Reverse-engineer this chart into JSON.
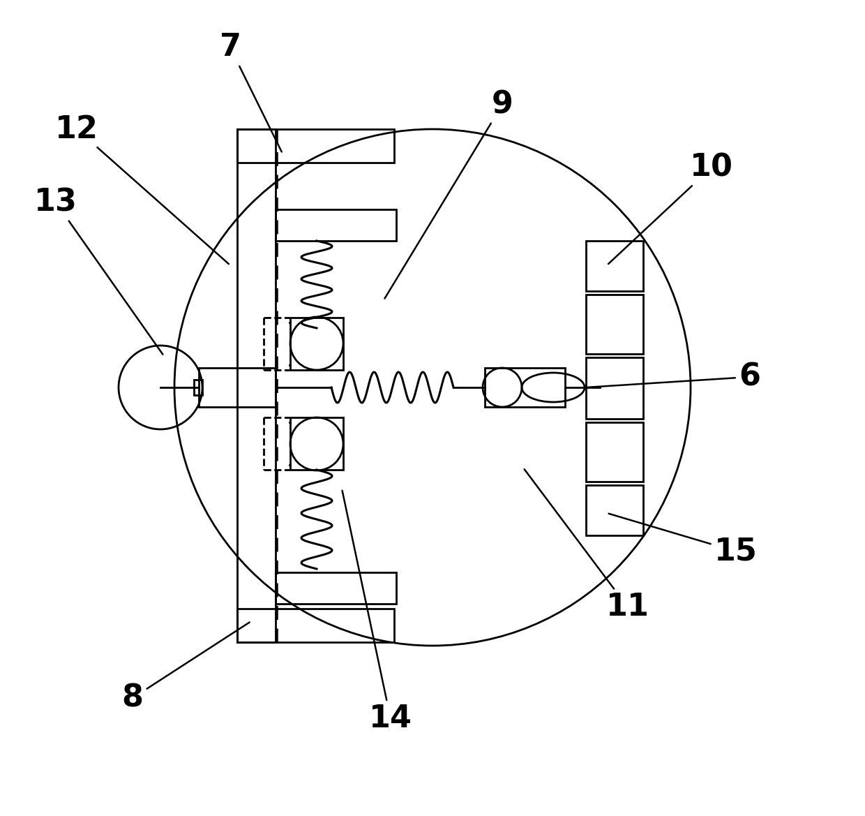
{
  "bg_color": "#ffffff",
  "line_color": "#000000",
  "fig_width": 12.4,
  "fig_height": 11.69,
  "dpi": 100,
  "label_fontsize": 32
}
